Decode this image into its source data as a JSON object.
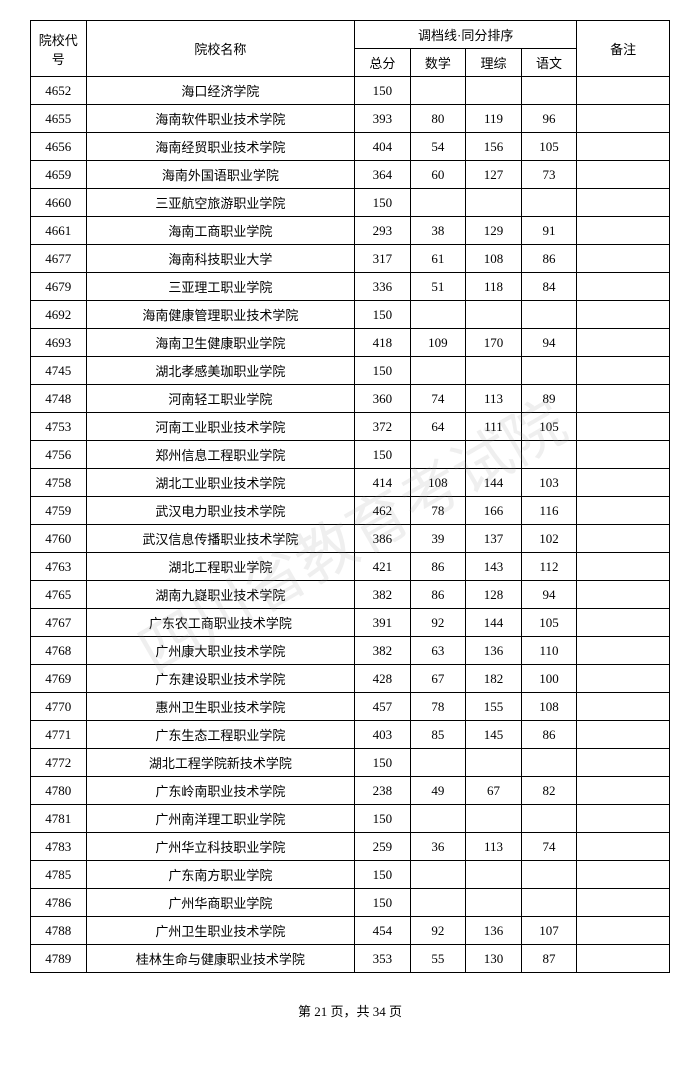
{
  "table": {
    "headers": {
      "code": "院校代号",
      "name": "院校名称",
      "scoreGroup": "调档线·同分排序",
      "total": "总分",
      "math": "数学",
      "science": "理综",
      "chinese": "语文",
      "remark": "备注"
    },
    "rows": [
      {
        "code": "4652",
        "name": "海口经济学院",
        "total": "150",
        "math": "",
        "science": "",
        "chinese": "",
        "remark": ""
      },
      {
        "code": "4655",
        "name": "海南软件职业技术学院",
        "total": "393",
        "math": "80",
        "science": "119",
        "chinese": "96",
        "remark": ""
      },
      {
        "code": "4656",
        "name": "海南经贸职业技术学院",
        "total": "404",
        "math": "54",
        "science": "156",
        "chinese": "105",
        "remark": ""
      },
      {
        "code": "4659",
        "name": "海南外国语职业学院",
        "total": "364",
        "math": "60",
        "science": "127",
        "chinese": "73",
        "remark": ""
      },
      {
        "code": "4660",
        "name": "三亚航空旅游职业学院",
        "total": "150",
        "math": "",
        "science": "",
        "chinese": "",
        "remark": ""
      },
      {
        "code": "4661",
        "name": "海南工商职业学院",
        "total": "293",
        "math": "38",
        "science": "129",
        "chinese": "91",
        "remark": ""
      },
      {
        "code": "4677",
        "name": "海南科技职业大学",
        "total": "317",
        "math": "61",
        "science": "108",
        "chinese": "86",
        "remark": ""
      },
      {
        "code": "4679",
        "name": "三亚理工职业学院",
        "total": "336",
        "math": "51",
        "science": "118",
        "chinese": "84",
        "remark": ""
      },
      {
        "code": "4692",
        "name": "海南健康管理职业技术学院",
        "total": "150",
        "math": "",
        "science": "",
        "chinese": "",
        "remark": ""
      },
      {
        "code": "4693",
        "name": "海南卫生健康职业学院",
        "total": "418",
        "math": "109",
        "science": "170",
        "chinese": "94",
        "remark": ""
      },
      {
        "code": "4745",
        "name": "湖北孝感美珈职业学院",
        "total": "150",
        "math": "",
        "science": "",
        "chinese": "",
        "remark": ""
      },
      {
        "code": "4748",
        "name": "河南轻工职业学院",
        "total": "360",
        "math": "74",
        "science": "113",
        "chinese": "89",
        "remark": ""
      },
      {
        "code": "4753",
        "name": "河南工业职业技术学院",
        "total": "372",
        "math": "64",
        "science": "111",
        "chinese": "105",
        "remark": ""
      },
      {
        "code": "4756",
        "name": "郑州信息工程职业学院",
        "total": "150",
        "math": "",
        "science": "",
        "chinese": "",
        "remark": ""
      },
      {
        "code": "4758",
        "name": "湖北工业职业技术学院",
        "total": "414",
        "math": "108",
        "science": "144",
        "chinese": "103",
        "remark": ""
      },
      {
        "code": "4759",
        "name": "武汉电力职业技术学院",
        "total": "462",
        "math": "78",
        "science": "166",
        "chinese": "116",
        "remark": ""
      },
      {
        "code": "4760",
        "name": "武汉信息传播职业技术学院",
        "total": "386",
        "math": "39",
        "science": "137",
        "chinese": "102",
        "remark": ""
      },
      {
        "code": "4763",
        "name": "湖北工程职业学院",
        "total": "421",
        "math": "86",
        "science": "143",
        "chinese": "112",
        "remark": ""
      },
      {
        "code": "4765",
        "name": "湖南九嶷职业技术学院",
        "total": "382",
        "math": "86",
        "science": "128",
        "chinese": "94",
        "remark": ""
      },
      {
        "code": "4767",
        "name": "广东农工商职业技术学院",
        "total": "391",
        "math": "92",
        "science": "144",
        "chinese": "105",
        "remark": ""
      },
      {
        "code": "4768",
        "name": "广州康大职业技术学院",
        "total": "382",
        "math": "63",
        "science": "136",
        "chinese": "110",
        "remark": ""
      },
      {
        "code": "4769",
        "name": "广东建设职业技术学院",
        "total": "428",
        "math": "67",
        "science": "182",
        "chinese": "100",
        "remark": ""
      },
      {
        "code": "4770",
        "name": "惠州卫生职业技术学院",
        "total": "457",
        "math": "78",
        "science": "155",
        "chinese": "108",
        "remark": ""
      },
      {
        "code": "4771",
        "name": "广东生态工程职业学院",
        "total": "403",
        "math": "85",
        "science": "145",
        "chinese": "86",
        "remark": ""
      },
      {
        "code": "4772",
        "name": "湖北工程学院新技术学院",
        "total": "150",
        "math": "",
        "science": "",
        "chinese": "",
        "remark": ""
      },
      {
        "code": "4780",
        "name": "广东岭南职业技术学院",
        "total": "238",
        "math": "49",
        "science": "67",
        "chinese": "82",
        "remark": ""
      },
      {
        "code": "4781",
        "name": "广州南洋理工职业学院",
        "total": "150",
        "math": "",
        "science": "",
        "chinese": "",
        "remark": ""
      },
      {
        "code": "4783",
        "name": "广州华立科技职业学院",
        "total": "259",
        "math": "36",
        "science": "113",
        "chinese": "74",
        "remark": ""
      },
      {
        "code": "4785",
        "name": "广东南方职业学院",
        "total": "150",
        "math": "",
        "science": "",
        "chinese": "",
        "remark": ""
      },
      {
        "code": "4786",
        "name": "广州华商职业学院",
        "total": "150",
        "math": "",
        "science": "",
        "chinese": "",
        "remark": ""
      },
      {
        "code": "4788",
        "name": "广州卫生职业技术学院",
        "total": "454",
        "math": "92",
        "science": "136",
        "chinese": "107",
        "remark": ""
      },
      {
        "code": "4789",
        "name": "桂林生命与健康职业技术学院",
        "total": "353",
        "math": "55",
        "science": "130",
        "chinese": "87",
        "remark": ""
      }
    ]
  },
  "footer": {
    "text": "第 21 页，共 34 页"
  },
  "watermark": "四川省教育考试院"
}
